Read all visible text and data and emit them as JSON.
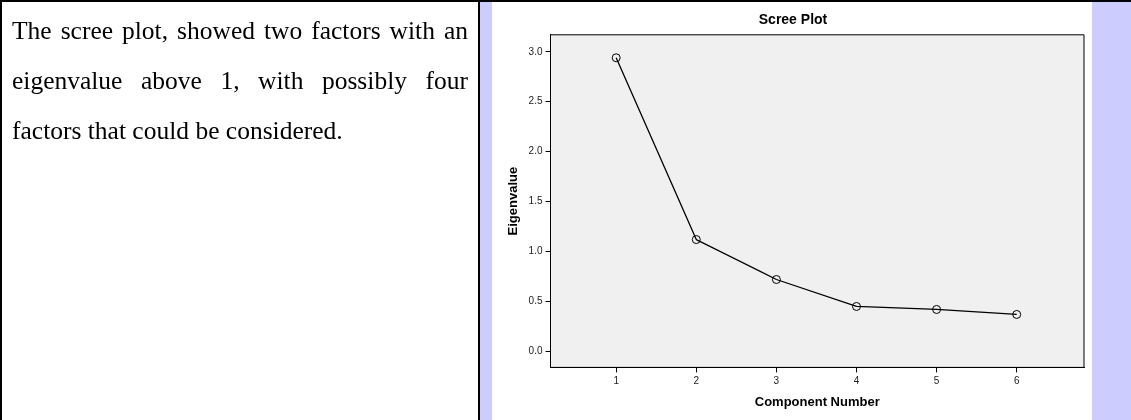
{
  "chart_data": {
    "type": "line",
    "title": "Scree Plot",
    "xlabel": "Component Number",
    "ylabel": "Eigenvalue",
    "annotations": [
      "The scree plot, showed two factors with an eigenvalue above 1, with possibly four factors that could be considered."
    ],
    "x": [
      1,
      2,
      3,
      4,
      5,
      6
    ],
    "series": [
      {
        "color": "#000000",
        "values": [
          2.94,
          1.12,
          0.72,
          0.45,
          0.42,
          0.37
        ]
      }
    ],
    "xlim": [
      0.18,
      6.84
    ],
    "xticks": [
      1,
      2,
      3,
      4,
      5,
      6
    ],
    "ylim": [
      -0.16,
      3.17
    ],
    "yticks": [
      {
        "value": 0,
        "label": "0.0"
      },
      {
        "value": 0.5,
        "label": "0.5"
      },
      {
        "value": 1,
        "label": "1.0"
      },
      {
        "value": 1.5,
        "label": "1.5"
      },
      {
        "value": 2,
        "label": "2.0"
      },
      {
        "value": 2.5,
        "label": "2.5"
      },
      {
        "value": 3,
        "label": "3.0"
      }
    ],
    "grid": false,
    "legend": false,
    "marker": "circle",
    "line_style": "solid"
  }
}
